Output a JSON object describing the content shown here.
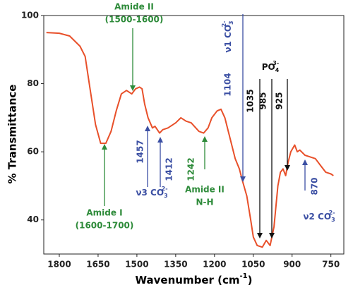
{
  "chart_data": {
    "type": "line",
    "xlabel": {
      "text": "Wavenumber (cm",
      "sup": "-1",
      "end": ")"
    },
    "ylabel": "% Transmittance",
    "xlim": [
      1860,
      700
    ],
    "ylim": [
      30,
      100
    ],
    "xticks": [
      1800,
      1650,
      1500,
      1350,
      1200,
      1050,
      900,
      750
    ],
    "yticks": [
      40,
      60,
      80,
      100
    ],
    "series": [
      {
        "color": "#e8502a",
        "x": [
          1850,
          1800,
          1760,
          1720,
          1700,
          1680,
          1660,
          1640,
          1620,
          1600,
          1580,
          1560,
          1540,
          1520,
          1505,
          1490,
          1480,
          1470,
          1457,
          1440,
          1430,
          1412,
          1400,
          1380,
          1350,
          1330,
          1310,
          1290,
          1260,
          1242,
          1225,
          1210,
          1190,
          1175,
          1160,
          1140,
          1120,
          1104,
          1090,
          1075,
          1060,
          1050,
          1035,
          1015,
          1000,
          985,
          970,
          955,
          945,
          935,
          925,
          915,
          905,
          890,
          880,
          870,
          850,
          830,
          810,
          790,
          770,
          750,
          740
        ],
        "values": [
          95,
          94.8,
          94,
          91,
          88,
          78,
          68,
          62.5,
          62.5,
          66,
          72,
          77,
          78,
          77,
          78.5,
          79,
          78.5,
          74,
          70,
          67,
          67.5,
          65.5,
          66.5,
          67,
          68.5,
          70,
          69,
          68.5,
          66,
          65.5,
          67,
          70,
          72,
          72.5,
          70,
          64,
          58,
          55,
          51,
          47,
          40,
          35,
          32.5,
          32,
          34,
          32.5,
          38,
          50,
          54,
          55,
          53,
          57,
          60,
          62,
          60,
          60.5,
          59,
          58.5,
          58,
          56,
          54,
          53.5,
          53
        ]
      }
    ],
    "annotations": [
      {
        "lines": [
          "Amide II",
          "(1500-1600)"
        ],
        "color": "#2e8b3a"
      },
      {
        "lines": [
          "Amide I",
          "(1600-1700)"
        ],
        "color": "#2e8b3a"
      },
      {
        "lines": [
          "1457"
        ],
        "color": "#3b4fa3"
      },
      {
        "lines": [
          "1412"
        ],
        "color": "#3b4fa3"
      },
      {
        "text": "ν3 CO",
        "sub": "3",
        "sup": "2-",
        "color": "#3b4fa3"
      },
      {
        "lines": [
          "1242"
        ],
        "color": "#2e8b3a"
      },
      {
        "lines": [
          "Amide II",
          "N-H"
        ],
        "color": "#2e8b3a"
      },
      {
        "text": "ν1 CO",
        "sub": "3",
        "sup": "2-",
        "color": "#3b4fa3"
      },
      {
        "lines": [
          "1104"
        ],
        "color": "#3b4fa3"
      },
      {
        "lines": [
          "1035"
        ],
        "color": "#111111"
      },
      {
        "lines": [
          "985"
        ],
        "color": "#111111"
      },
      {
        "text": "PO",
        "sub": "4",
        "sup": "3-",
        "color": "#111111"
      },
      {
        "lines": [
          "925"
        ],
        "color": "#111111"
      },
      {
        "lines": [
          "870"
        ],
        "color": "#3b4fa3"
      },
      {
        "text": "ν2 CO",
        "sub": "3",
        "sup": "2-",
        "color": "#3b4fa3"
      }
    ]
  }
}
